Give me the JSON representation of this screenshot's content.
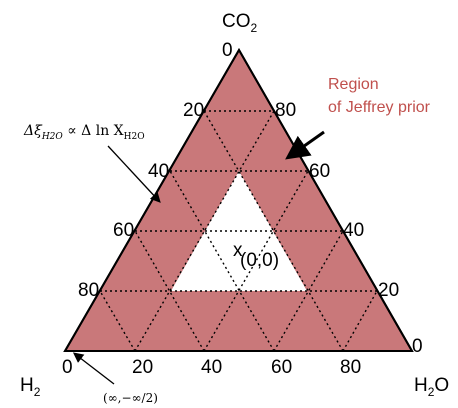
{
  "corners": {
    "top": {
      "base": "CO",
      "sub": "2"
    },
    "left": {
      "base": "H",
      "sub": "2"
    },
    "right": {
      "base": "H",
      "sub": "2",
      "tail": "O"
    }
  },
  "ticks": {
    "left_edge": [
      "0",
      "20",
      "40",
      "60",
      "80"
    ],
    "right_edge": [
      "80",
      "60",
      "40",
      "20",
      "0"
    ],
    "bottom_edge": [
      "0",
      "20",
      "40",
      "60",
      "80"
    ]
  },
  "annotations": {
    "region_line1": "Region",
    "region_line2": "of Jeffrey prior",
    "center_marker": "x",
    "center_label": "(0,0)",
    "formula_lhs": "Δξ",
    "formula_sub": "H2O",
    "formula_mid": " ∝ Δ ln X",
    "formula_sub2": "H2O",
    "bottom_label": "(∞,−∞/2)"
  },
  "colors": {
    "fill": "#c9787a",
    "white_region": "#ffffff",
    "note": "#c0504d"
  }
}
